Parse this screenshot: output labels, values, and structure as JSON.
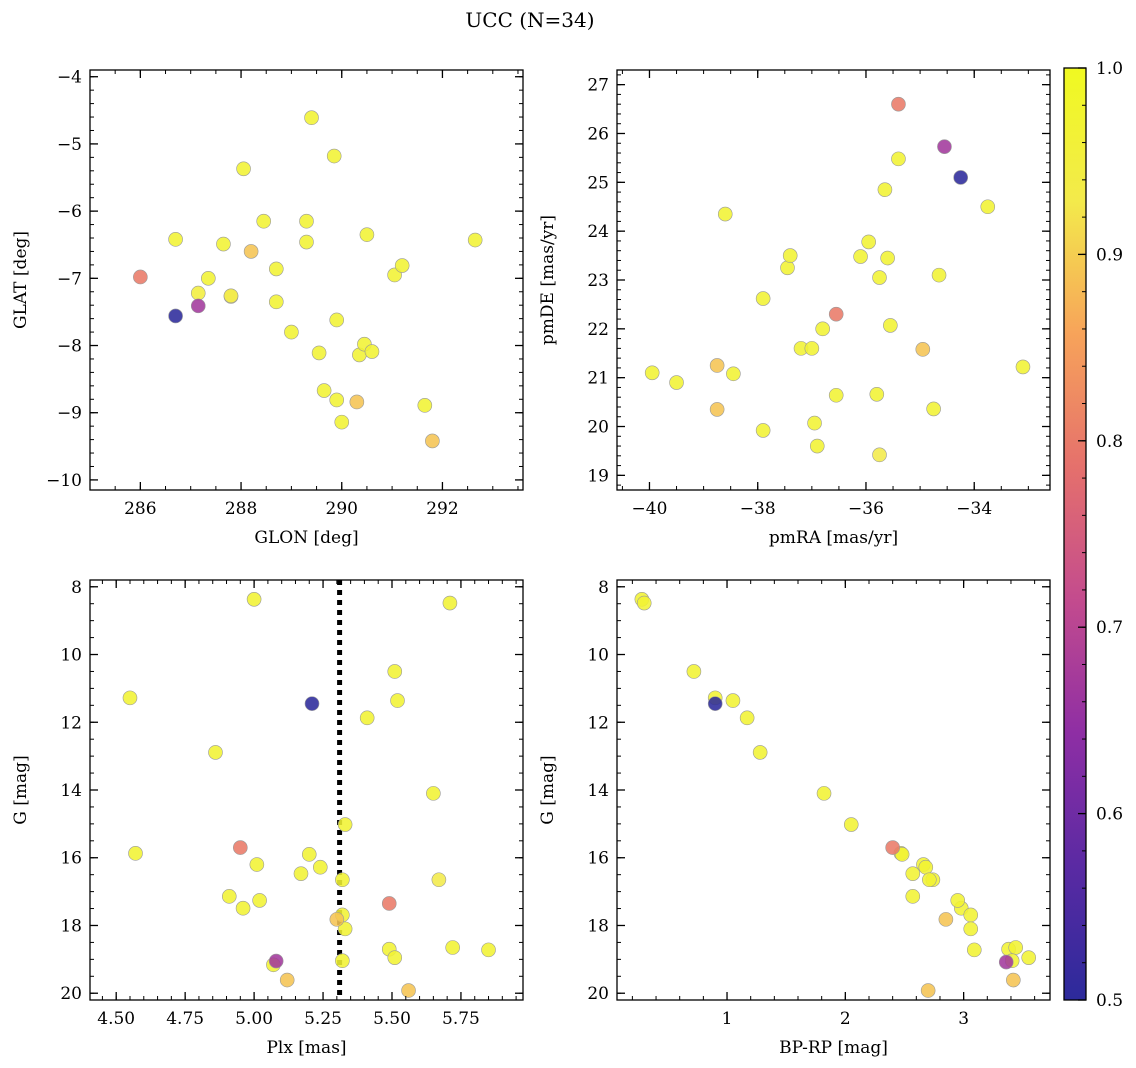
{
  "figure": {
    "title": "UCC (N=34)"
  },
  "colorbar": {
    "min": 0.5,
    "max": 1.0,
    "ticks": [
      0.5,
      0.6,
      0.7,
      0.8,
      0.9,
      1.0
    ],
    "tick_labels": [
      "0.5",
      "0.6",
      "0.7",
      "0.8",
      "0.9",
      "1.0"
    ],
    "colormap": "plasma",
    "colors": [
      "#2c2a9b",
      "#5a2aa3",
      "#8e2ea4",
      "#c34b8e",
      "#e5706c",
      "#f7a35a",
      "#f3ea4b",
      "#f0f921"
    ]
  },
  "chart_data": [
    {
      "type": "scatter",
      "name": "glon-glat",
      "xlabel": "GLON [deg]",
      "ylabel": "GLAT [deg]",
      "xlim": [
        285.0,
        293.6
      ],
      "ylim": [
        -10.15,
        -3.9
      ],
      "y_inverted": false,
      "xticks": [
        286,
        288,
        290,
        292
      ],
      "xtick_labels": [
        "286",
        "288",
        "290",
        "292"
      ],
      "yticks": [
        -10,
        -9,
        -8,
        -7,
        -6,
        -5,
        -4
      ],
      "ytick_labels": [
        "−10",
        "−9",
        "−8",
        "−7",
        "−6",
        "−5",
        "−4"
      ],
      "xminor": 0.5,
      "yminor": 0.2,
      "x": [
        286.0,
        286.7,
        287.15,
        287.35,
        287.65,
        287.8,
        288.05,
        288.2,
        288.45,
        288.7,
        288.7,
        289.0,
        289.3,
        289.3,
        289.4,
        289.55,
        289.65,
        289.85,
        289.9,
        289.9,
        290.0,
        290.3,
        290.35,
        290.45,
        290.5,
        290.6,
        291.05,
        291.2,
        291.65,
        291.8,
        292.65,
        286.7,
        287.15,
        287.8
      ],
      "y": [
        -6.98,
        -6.42,
        -7.22,
        -7.0,
        -6.49,
        -7.27,
        -5.37,
        -6.6,
        -6.15,
        -6.86,
        -7.35,
        -7.8,
        -6.15,
        -6.46,
        -4.61,
        -8.11,
        -8.67,
        -5.18,
        -8.81,
        -7.62,
        -9.14,
        -8.84,
        -8.14,
        -7.98,
        -6.35,
        -8.09,
        -6.95,
        -6.81,
        -8.89,
        -9.42,
        -6.43,
        -7.56,
        -7.41,
        -7.26
      ],
      "c": [
        0.8,
        0.97,
        0.95,
        0.97,
        0.97,
        0.93,
        0.97,
        0.89,
        0.97,
        0.97,
        0.97,
        0.97,
        0.97,
        0.97,
        0.97,
        0.97,
        0.97,
        0.97,
        0.97,
        0.97,
        0.97,
        0.89,
        0.97,
        0.97,
        0.97,
        0.97,
        0.97,
        0.97,
        0.97,
        0.89,
        0.97,
        0.5,
        0.67,
        0.93
      ]
    },
    {
      "type": "scatter",
      "name": "pmra-pmde",
      "xlabel": "pmRA [mas/yr]",
      "ylabel": "pmDE [mas/yr]",
      "xlim": [
        -40.6,
        -32.6
      ],
      "ylim": [
        18.7,
        27.3
      ],
      "y_inverted": false,
      "xticks": [
        -40,
        -38,
        -36,
        -34
      ],
      "xtick_labels": [
        "−40",
        "−38",
        "−36",
        "−34"
      ],
      "yticks": [
        19,
        20,
        21,
        22,
        23,
        24,
        25,
        26,
        27
      ],
      "ytick_labels": [
        "19",
        "20",
        "21",
        "22",
        "23",
        "24",
        "25",
        "26",
        "27"
      ],
      "xminor": 0.5,
      "yminor": 0.2,
      "x": [
        -39.95,
        -39.5,
        -38.75,
        -38.75,
        -38.6,
        -38.45,
        -37.9,
        -37.9,
        -37.45,
        -37.4,
        -37.2,
        -37.0,
        -36.95,
        -36.9,
        -36.8,
        -36.55,
        -36.55,
        -36.1,
        -35.95,
        -35.8,
        -35.75,
        -35.75,
        -35.65,
        -35.6,
        -35.55,
        -35.4,
        -35.4,
        -34.95,
        -34.75,
        -34.65,
        -34.55,
        -34.25,
        -33.75,
        -33.1
      ],
      "y": [
        21.1,
        20.9,
        21.25,
        20.35,
        24.35,
        21.08,
        22.62,
        19.92,
        23.25,
        23.5,
        21.6,
        21.6,
        20.07,
        19.6,
        22.0,
        22.3,
        20.64,
        23.48,
        23.78,
        20.66,
        23.05,
        19.42,
        24.85,
        23.45,
        22.07,
        25.48,
        26.6,
        21.58,
        20.36,
        23.1,
        25.73,
        25.1,
        24.5,
        21.22
      ],
      "c": [
        0.97,
        0.97,
        0.89,
        0.89,
        0.97,
        0.97,
        0.97,
        0.97,
        0.97,
        0.97,
        0.97,
        0.97,
        0.97,
        0.97,
        0.97,
        0.8,
        0.97,
        0.97,
        0.97,
        0.97,
        0.97,
        0.93,
        0.97,
        0.97,
        0.97,
        0.97,
        0.8,
        0.89,
        0.97,
        0.97,
        0.67,
        0.5,
        0.97,
        0.97
      ]
    },
    {
      "type": "scatter",
      "name": "plx-g",
      "xlabel": "Plx [mas]",
      "ylabel": "G [mag]",
      "xlim": [
        4.405,
        5.975
      ],
      "ylim": [
        7.8,
        20.2
      ],
      "y_inverted": true,
      "xticks": [
        4.5,
        4.75,
        5.0,
        5.25,
        5.5,
        5.75
      ],
      "xtick_labels": [
        "4.50",
        "4.75",
        "5.00",
        "5.25",
        "5.50",
        "5.75"
      ],
      "yticks": [
        8,
        10,
        12,
        14,
        16,
        18,
        20
      ],
      "ytick_labels": [
        "8",
        "10",
        "12",
        "14",
        "16",
        "18",
        "20"
      ],
      "xminor": 0.05,
      "yminor": 0.5,
      "vline": {
        "x": 5.31,
        "style": "dotted"
      },
      "x": [
        5.0,
        5.71,
        5.51,
        4.55,
        5.52,
        5.41,
        4.86,
        5.65,
        5.33,
        4.57,
        5.2,
        5.01,
        5.17,
        5.24,
        5.32,
        4.96,
        4.91,
        5.02,
        5.67,
        5.32,
        5.33,
        5.49,
        5.51,
        5.85,
        5.72,
        5.07,
        5.32,
        5.21,
        4.95,
        5.49,
        5.3,
        5.12,
        5.56,
        5.08
      ],
      "y": [
        8.37,
        8.48,
        10.5,
        11.28,
        11.36,
        11.87,
        12.89,
        14.1,
        15.02,
        15.87,
        15.9,
        16.2,
        16.47,
        16.28,
        16.65,
        17.49,
        17.14,
        17.26,
        16.65,
        17.69,
        18.1,
        18.7,
        18.95,
        18.72,
        18.65,
        19.16,
        19.04,
        11.45,
        15.7,
        17.35,
        17.82,
        19.61,
        19.92,
        19.05
      ],
      "c": [
        0.97,
        0.97,
        0.97,
        0.97,
        0.97,
        0.97,
        0.97,
        0.97,
        0.97,
        0.97,
        0.97,
        0.97,
        0.97,
        0.97,
        0.97,
        0.97,
        0.97,
        0.97,
        0.93,
        0.97,
        0.97,
        0.97,
        0.97,
        0.97,
        0.97,
        0.97,
        0.97,
        0.5,
        0.8,
        0.8,
        0.89,
        0.89,
        0.89,
        0.67
      ]
    },
    {
      "type": "scatter",
      "name": "bprp-g",
      "xlabel": "BP-RP [mag]",
      "ylabel": "G [mag]",
      "xlim": [
        0.07,
        3.73
      ],
      "ylim": [
        7.8,
        20.2
      ],
      "y_inverted": true,
      "xticks": [
        1,
        2,
        3
      ],
      "xtick_labels": [
        "1",
        "2",
        "3"
      ],
      "yticks": [
        8,
        10,
        12,
        14,
        16,
        18,
        20
      ],
      "ytick_labels": [
        "8",
        "10",
        "12",
        "14",
        "16",
        "18",
        "20"
      ],
      "xminor": 0.2,
      "yminor": 0.5,
      "x": [
        0.28,
        0.3,
        0.72,
        0.9,
        1.05,
        1.17,
        1.28,
        1.82,
        2.05,
        2.47,
        2.48,
        2.66,
        2.57,
        2.68,
        2.74,
        2.98,
        2.57,
        2.95,
        2.71,
        3.06,
        3.06,
        3.09,
        3.38,
        3.44,
        3.41,
        3.55,
        0.9,
        2.4,
        2.85,
        3.36,
        3.42,
        2.7
      ],
      "y": [
        8.37,
        8.48,
        10.5,
        11.28,
        11.36,
        11.87,
        12.89,
        14.1,
        15.02,
        15.87,
        15.9,
        16.2,
        16.47,
        16.28,
        16.65,
        17.49,
        17.14,
        17.26,
        16.65,
        17.69,
        18.1,
        18.72,
        18.7,
        18.65,
        19.04,
        18.95,
        11.45,
        15.7,
        17.82,
        19.08,
        19.61,
        19.92
      ],
      "c": [
        0.97,
        0.97,
        0.97,
        0.97,
        0.97,
        0.97,
        0.97,
        0.97,
        0.97,
        0.97,
        0.97,
        0.97,
        0.97,
        0.97,
        0.97,
        0.97,
        0.97,
        0.97,
        0.97,
        0.97,
        0.97,
        0.97,
        0.97,
        0.97,
        0.97,
        0.97,
        0.5,
        0.8,
        0.89,
        0.67,
        0.89,
        0.89
      ]
    }
  ]
}
